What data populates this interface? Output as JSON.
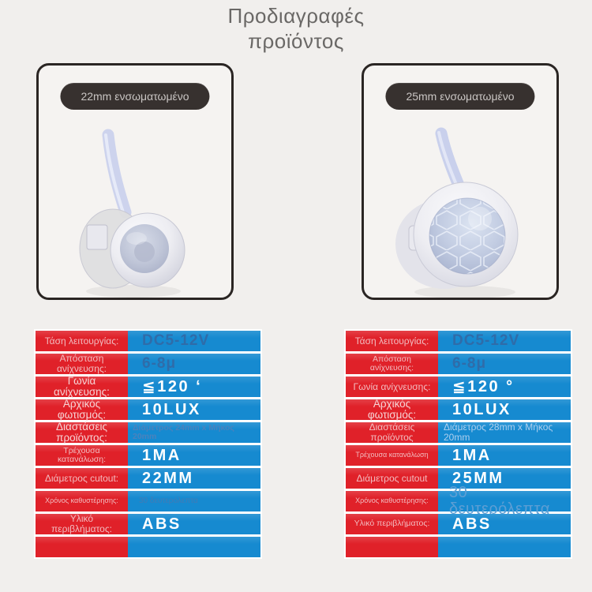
{
  "title": {
    "line1": "Προδιαγραφές",
    "line2": "προϊόντος"
  },
  "colors": {
    "page_bg": "#f1efed",
    "card_border": "#2a2523",
    "badge_bg": "#37312f",
    "badge_text": "#c9c5c3",
    "title_color": "#6a6866",
    "red": "#e02129",
    "blue": "#168ad0"
  },
  "images": {
    "left": "pir-sensor-22mm-photo",
    "right": "pir-sensor-25mm-photo"
  },
  "products": [
    {
      "badge": "22mm ενσωματωμένο",
      "specs": [
        {
          "label": "Τάση λειτουργίας:",
          "value": "DC5-12V",
          "label_style": "md",
          "value_style": "muted-lg"
        },
        {
          "label": "Απόσταση ανίχνευσης:",
          "value": "6-8μ",
          "label_style": "md",
          "value_style": "muted-lg"
        },
        {
          "label": "Γωνία ανίχνευσης:",
          "value": "≦120 ʻ",
          "label_style": "lg",
          "value_style": "bold"
        },
        {
          "label": "Αρχικός φωτισμός:",
          "value": "10LUX",
          "label_style": "lg",
          "value_style": "bold"
        },
        {
          "label": "Διαστάσεις προϊόντος:",
          "value": "Διάμετρος 24mm x Μήκος 20mm",
          "label_style": "lg",
          "value_style": "muted-sm"
        },
        {
          "label": "Τρέχουσα κατανάλωση:",
          "value": "1MA",
          "label_style": "sm",
          "value_style": "bold"
        },
        {
          "label": "Διάμετρος cutout:",
          "value": "22MM",
          "label_style": "md",
          "value_style": "bold"
        },
        {
          "label": "Χρόνος καθυστέρησης:",
          "value": "30 δευτερόλεπτα",
          "label_style": "xs",
          "value_style": "muted-xs"
        },
        {
          "label": "Υλικό περιβλήματος:",
          "value": "ABS",
          "label_style": "md",
          "value_style": "bold"
        },
        {
          "label": "",
          "value": "",
          "label_style": "md",
          "value_style": "bold"
        }
      ]
    },
    {
      "badge": "25mm ενσωματωμένο",
      "specs": [
        {
          "label": "Τάση λειτουργίας:",
          "value": "DC5-12V",
          "label_style": "md",
          "value_style": "muted-lg"
        },
        {
          "label": "Απόσταση ανίχνευσης:",
          "value": "6-8μ",
          "label_style": "sm",
          "value_style": "muted-lg"
        },
        {
          "label": "Γωνία ανίχνευσης:",
          "value": "≦120 °",
          "label_style": "md",
          "value_style": "bold"
        },
        {
          "label": "Αρχικός φωτισμός:",
          "value": "10LUX",
          "label_style": "lg",
          "value_style": "bold"
        },
        {
          "label": "Διαστάσεις προϊόντος",
          "value": "Διάμετρος 28mm x Μήκος 20mm",
          "label_style": "md",
          "value_style": "light-sm"
        },
        {
          "label": "Τρέχουσα κατανάλωση",
          "value": "1MA",
          "label_style": "xs",
          "value_style": "bold"
        },
        {
          "label": "Διάμετρος cutout",
          "value": "25MM",
          "label_style": "md",
          "value_style": "bold"
        },
        {
          "label": "Χρόνος καθυστέρησης:",
          "value": "30 δευτερόλεπτα",
          "label_style": "xs",
          "value_style": "light-lg"
        },
        {
          "label": "Υλικό περιβλήματος:",
          "value": "ABS",
          "label_style": "sm",
          "value_style": "bold"
        },
        {
          "label": "",
          "value": "",
          "label_style": "md",
          "value_style": "bold"
        }
      ]
    }
  ]
}
